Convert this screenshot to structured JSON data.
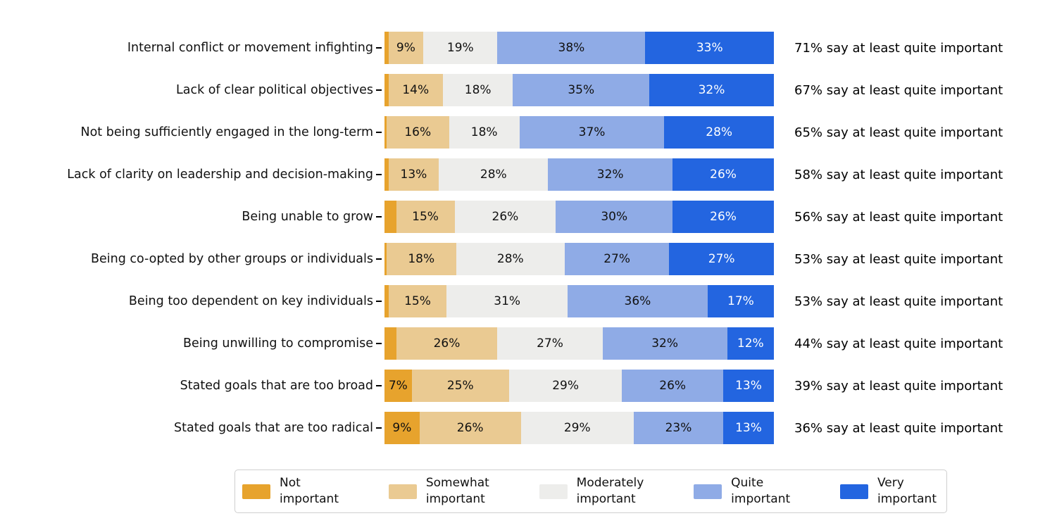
{
  "chart_data": {
    "type": "bar",
    "orientation": "horizontal",
    "stacked": true,
    "unit": "%",
    "title": "",
    "xlabel": "",
    "ylabel": "",
    "xlim": [
      0,
      100
    ],
    "grid": false,
    "legend_position": "bottom",
    "segment_label_min_pct": 5,
    "series": [
      {
        "name": "Not important",
        "color": "#e7a32d",
        "text_color": "#111111",
        "legend_lines": "Not\nimportant"
      },
      {
        "name": "Somewhat important",
        "color": "#eaca92",
        "text_color": "#111111",
        "legend_lines": "Somewhat\nimportant"
      },
      {
        "name": "Moderately important",
        "color": "#ededeb",
        "text_color": "#111111",
        "legend_lines": "Moderately\nimportant"
      },
      {
        "name": "Quite important",
        "color": "#8fabe6",
        "text_color": "#111111",
        "legend_lines": "Quite\nimportant"
      },
      {
        "name": "Very important",
        "color": "#2365e0",
        "text_color": "#ffffff",
        "legend_lines": "Very\nimportant"
      }
    ],
    "rows": [
      {
        "category": "Internal conflict or movement infighting",
        "values": [
          1,
          9,
          19,
          38,
          33
        ],
        "annotation": "71% say at least quite important"
      },
      {
        "category": "Lack of clear political objectives",
        "values": [
          1,
          14,
          18,
          35,
          32
        ],
        "annotation": "67% say at least quite important"
      },
      {
        "category": "Not being sufficiently engaged in the long-term",
        "values": [
          0.5,
          16,
          18,
          37,
          28
        ],
        "annotation": "65% say at least quite important"
      },
      {
        "category": "Lack of clarity on leadership and decision-making",
        "values": [
          1,
          13,
          28,
          32,
          26
        ],
        "annotation": "58% say at least quite important"
      },
      {
        "category": "Being unable to grow",
        "values": [
          3,
          15,
          26,
          30,
          26
        ],
        "annotation": "56% say at least quite important"
      },
      {
        "category": "Being co-opted by other groups or individuals",
        "values": [
          0.5,
          18,
          28,
          27,
          27
        ],
        "annotation": "53% say at least quite important"
      },
      {
        "category": "Being too dependent on key individuals",
        "values": [
          1,
          15,
          31,
          36,
          17
        ],
        "annotation": "53% say at least quite important"
      },
      {
        "category": "Being unwilling to compromise",
        "values": [
          3,
          26,
          27,
          32,
          12
        ],
        "annotation": "44% say at least quite important"
      },
      {
        "category": "Stated goals that are too broad",
        "values": [
          7,
          25,
          29,
          26,
          13
        ],
        "annotation": "39% say at least quite important"
      },
      {
        "category": "Stated goals that are too radical",
        "values": [
          9,
          26,
          29,
          23,
          13
        ],
        "annotation": "36% say at least quite important"
      }
    ]
  }
}
